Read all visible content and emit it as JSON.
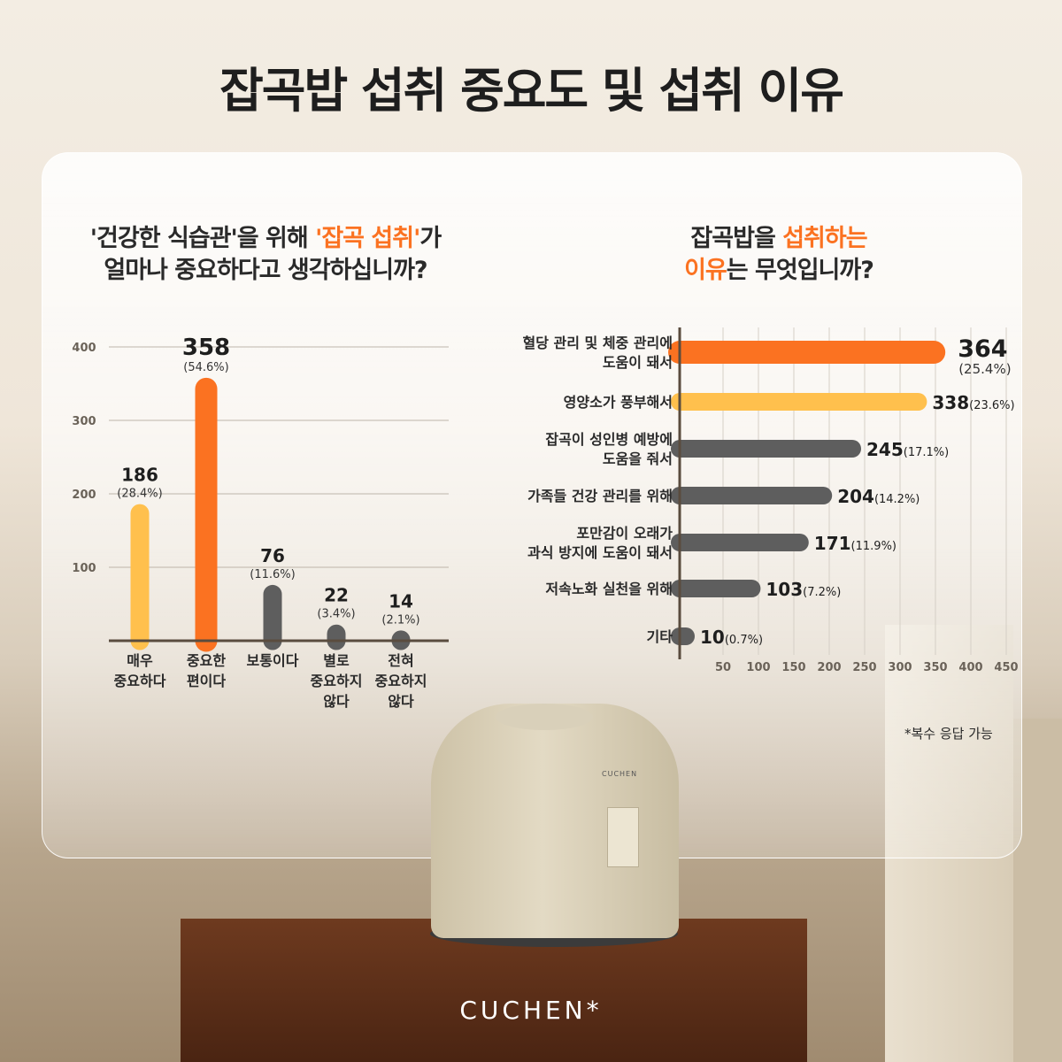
{
  "page_title": "잡곡밥 섭취 중요도 및 섭취 이유",
  "brand": "CUCHEN*",
  "product_label": "CUCHEN",
  "footnote": "*복수 응답 가능",
  "colors": {
    "orange": "#fb7221",
    "yellow": "#ffc04d",
    "gray": "#5e5e5e"
  },
  "chart_data": [
    {
      "type": "bar",
      "orientation": "vertical",
      "title_parts": {
        "a": "'건강한 식습관'을 위해 ",
        "b": "'잡곡 섭취'",
        "c": "가",
        "d": "얼마나 중요하다고 생각하십니까?"
      },
      "categories": [
        "매우\n중요하다",
        "중요한\n편이다",
        "보통이다",
        "별로\n중요하지\n않다",
        "전혀\n중요하지\n않다"
      ],
      "values": [
        186,
        358,
        76,
        22,
        14
      ],
      "percent_labels": [
        "(28.4%)",
        "(54.6%)",
        "(11.6%)",
        "(3.4%)",
        "(2.1%)"
      ],
      "bar_colors": [
        "#ffc04d",
        "#fb7221",
        "#5e5e5e",
        "#5e5e5e",
        "#5e5e5e"
      ],
      "yticks": [
        "100",
        "200",
        "300",
        "400"
      ],
      "ylim": [
        0,
        400
      ],
      "grid": true
    },
    {
      "type": "bar",
      "orientation": "horizontal",
      "title_parts": {
        "a": "잡곡밥을 ",
        "b": "섭취하는",
        "c": "이유",
        "d": "는 무엇입니까?"
      },
      "categories": [
        "혈당 관리 및 체중 관리에\n도움이 돼서",
        "영양소가 풍부해서",
        "잡곡이 성인병 예방에\n도움을 줘서",
        "가족들 건강 관리를 위해",
        "포만감이 오래가\n과식 방지에 도움이 돼서",
        "저속노화 실천을 위해",
        "기타"
      ],
      "values": [
        364,
        338,
        245,
        204,
        171,
        103,
        10
      ],
      "percent_labels": [
        "(25.4%)",
        "(23.6%)",
        "(17.1%)",
        "(14.2%)",
        "(11.9%)",
        "(7.2%)",
        "(0.7%)"
      ],
      "bar_colors": [
        "#fb7221",
        "#ffc04d",
        "#5e5e5e",
        "#5e5e5e",
        "#5e5e5e",
        "#5e5e5e",
        "#5e5e5e"
      ],
      "xticks": [
        "50",
        "100",
        "150",
        "200",
        "250",
        "300",
        "350",
        "400",
        "450"
      ],
      "xlim": [
        0,
        450
      ],
      "grid": true
    }
  ]
}
